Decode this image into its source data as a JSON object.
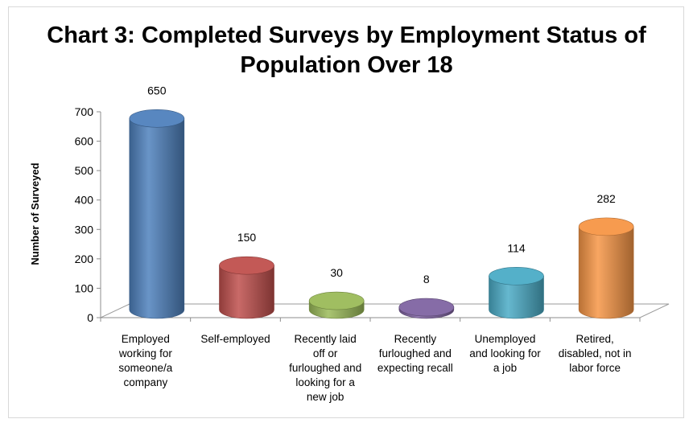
{
  "chart_data": {
    "type": "bar",
    "title_lines": [
      "Chart 3: Completed Surveys by Employment Status of",
      "Population Over 18"
    ],
    "xlabel": "",
    "ylabel": "Number of Surveyed",
    "ylim": [
      0,
      700
    ],
    "yticks": [
      "0",
      "100",
      "200",
      "300",
      "400",
      "500",
      "600",
      "700"
    ],
    "categories": [
      [
        "Employed",
        "working for",
        "someone/a",
        "company"
      ],
      [
        "Self-employed"
      ],
      [
        "Recently laid",
        "off or",
        "furloughed and",
        "looking for a",
        "new job"
      ],
      [
        "Recently",
        "furloughed and",
        "expecting recall"
      ],
      [
        "Unemployed",
        "and looking for",
        "a job"
      ],
      [
        "Retired,",
        "disabled, not in",
        "labor force"
      ]
    ],
    "values": [
      650,
      150,
      30,
      8,
      114,
      282
    ],
    "colors": [
      "#4f81bd",
      "#c0504d",
      "#9bbb59",
      "#8064a2",
      "#4bacc6",
      "#f79646"
    ],
    "grid": false,
    "legend": "none",
    "style": "3d-cylinder"
  }
}
